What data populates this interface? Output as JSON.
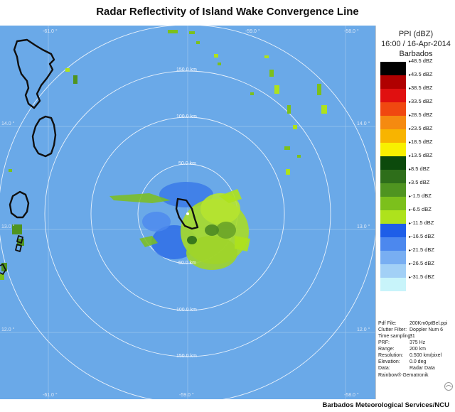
{
  "title": "Radar Reflectivity of Island Wake Convergence Line",
  "panel": {
    "product": "PPI (dBZ)",
    "datetime": "16:00 / 16-Apr-2014",
    "site": "Barbados"
  },
  "legend": [
    {
      "label": "48.5 dBZ",
      "color": "#000000"
    },
    {
      "label": "43.5 dBZ",
      "color": "#b00000"
    },
    {
      "label": "38.5 dBZ",
      "color": "#e01010"
    },
    {
      "label": "33.5 dBZ",
      "color": "#f04810"
    },
    {
      "label": "28.5 dBZ",
      "color": "#f58a10"
    },
    {
      "label": "23.5 dBZ",
      "color": "#f8b400"
    },
    {
      "label": "18.5 dBZ",
      "color": "#f8f000"
    },
    {
      "label": "13.5 dBZ",
      "color": "#0c4a0c"
    },
    {
      "label": "8.5 dBZ",
      "color": "#2e6e1a"
    },
    {
      "label": "3.5 dBZ",
      "color": "#4f9420"
    },
    {
      "label": "-1.5 dBZ",
      "color": "#7cc01c"
    },
    {
      "label": "-6.5 dBZ",
      "color": "#aee21c"
    },
    {
      "label": "-11.5 dBZ",
      "color": "#1e5ee8"
    },
    {
      "label": "-16.5 dBZ",
      "color": "#4c88ee"
    },
    {
      "label": "-21.5 dBZ",
      "color": "#78aef2"
    },
    {
      "label": "-26.5 dBZ",
      "color": "#a2d0f6"
    },
    {
      "label": "-31.5 dBZ",
      "color": "#c8f4fa"
    }
  ],
  "meta": [
    {
      "key": "Pdf File:",
      "value": "200Km0ptBel.ppi"
    },
    {
      "key": "Clutter Filter:",
      "value": "Doppler Num 6"
    },
    {
      "key": "Time sampling:",
      "value": "31"
    },
    {
      "key": "PRF:",
      "value": "375 Hz"
    },
    {
      "key": "Range:",
      "value": "200 km"
    },
    {
      "key": "Resolution:",
      "value": "0.500 km/pixel"
    },
    {
      "key": "Elevation:",
      "value": "0.0 deg"
    },
    {
      "key": "Data:",
      "value": "Radar Data"
    }
  ],
  "brand": "Rainbow® Gematronik",
  "credit": "Barbados Meteorological Services/NCU",
  "map": {
    "background": "#6aa9e8",
    "range_labels": [
      "50.0 km",
      "100.0 km",
      "150.0 km",
      "100.0 km",
      "150.0 km",
      "50.0 km"
    ],
    "lon_labels_top": [
      "-61.0 °",
      "-59.0 °",
      "-58.0 °"
    ],
    "lon_labels_bottom": [
      "-61.0 °",
      "-59.0 °",
      "-58.0 °"
    ],
    "lat_labels_left": [
      "14.0 °",
      "13.0 °",
      "12.0 °"
    ],
    "lat_labels_right": [
      "14.0 °",
      "13.0 °",
      "12.0 °"
    ]
  }
}
